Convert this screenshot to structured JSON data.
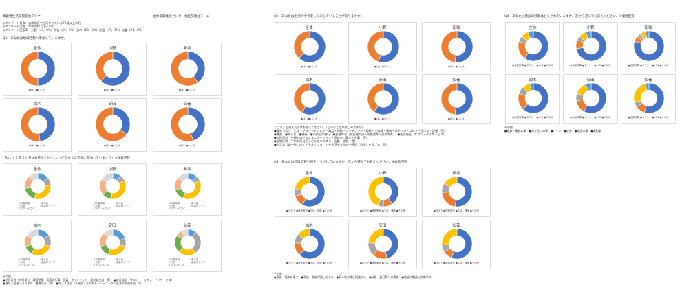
{
  "colors": {
    "blue": "#4472C4",
    "orange": "#ED7D31",
    "gray": "#A5A5A5",
    "yellow": "#FFC000",
    "lightblue": "#5B9BD5",
    "green": "#70AD47",
    "peach": "#F4B183",
    "lightgray": "#D9D9D9"
  },
  "sheet1": {
    "title": "高齢者生活支援協会アンケート",
    "org": "油木振興推進センター福祉部福祉チーム",
    "meta": [
      "◎アンケート対象：油木地区で生活されている75歳以上の方",
      "◎アンケート実施：令和4年10月〜12月",
      "◎アンケート回収率・分割（43、0%）前後（55、5%）油木（50、8%）安田（47、1%）仙養（21、8%）"
    ],
    "q1": "Q1　あなたは地域活動へ参加していますか。",
    "q1_legend": "●はい ●いいえ",
    "q1_sub": "「はい」と答えた方はお答えください。（どのような活動に参加していますか）※複数回答",
    "sub_legend": [
      "・100歳体操",
      "・老人会",
      "・その他",
      "・百歳のクラブ",
      "・グラウンドゴルフ"
    ],
    "notes_label": "その他",
    "notes": [
      "●花長寿会（神社祭り・環境整備・画廊近行事・役員・ボランティア・異文化交流　等）　●花長福祉（サロン・・カフェ・デイサービス）",
      "●趣味（謡曲・カラオケ・書道の方　等）　●命ふるさと（木植祭・彩の知とトレーニング・生活の知薬年会　等）"
    ]
  },
  "sheet2": {
    "q2": "Q2　あなたは生活の中で楽しみにしていることがありますか。",
    "q2_legend": "●はい ●いいえ",
    "q2_sub": "「はい」と答えた方はお答えください。（どんなことが楽しみですか）",
    "q2_notes": [
      "●趣味（釣り・生花・グラウンドゴルフ・電話・短歌・ガーデニング・短歌・三味線・演劇・パチンコ・ゴルフ・生け花・読書　等）",
      "●農業　●テレビ　●旅行　●家族との旅行　●友達等を（お友達の分・喫茶店等・話す等を）　●生き福祉（サロン・デイサービス）",
      "●入院等料（中間との一コミュニケーション・読み合い聞き・食事　等）",
      "●居場所時（子供の活発さ子どもたちの幸せ・出勤・旅野　等）",
      "●生活力（畑や外に出て・生きていることや生活を考える一田野（日常）を過ごる　等）"
    ],
    "q3": "Q3　あなたは普段の買い物をどうされていますか。次から選んでお答えください。※複数回答",
    "q3_legend": "●自分で ●移動販売 ●生協・通販 ●その他",
    "notes_label": "その他",
    "q3_notes": "●家族・親族の車で　●家族・親族が買ってくる　●気ん坊の車に同乗する　●私設（週日等）の車化　●施設の職員に依頼する"
  },
  "sheet3": {
    "q4": "Q4　あなたは普段の移動はどうされていますか。次から選んでお答えください。※複数回答",
    "q4_legend": "●自家用車 ●タクシー ●バス ●その他",
    "notes_label": "その他",
    "q4_notes": "●家族・親族の車　●知り合いの車　●バイク　●徒歩　●施設の車　●電動車"
  },
  "regions": [
    "全体",
    "小野",
    "新坂",
    "油木",
    "安田",
    "仙養"
  ]
}
